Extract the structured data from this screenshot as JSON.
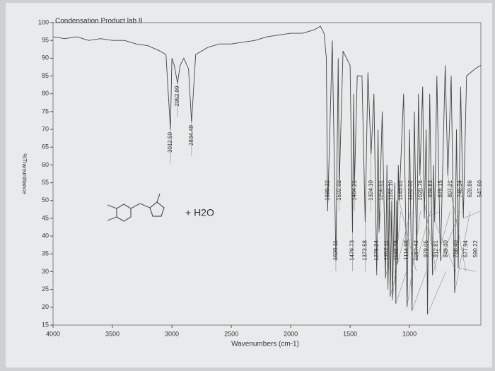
{
  "chart_data": {
    "type": "line",
    "title": "Condensation Product lab 8",
    "x_label": "Wavenumbers (cm-1)",
    "y_label": "%Transmittance",
    "annotation": "+ H2O",
    "xlim": [
      4000,
      400
    ],
    "xticks": [
      4000,
      3500,
      3000,
      2500,
      2000,
      1500,
      1000
    ],
    "ylim": [
      15,
      100
    ],
    "yticks": [
      15,
      20,
      25,
      30,
      35,
      40,
      45,
      50,
      55,
      60,
      65,
      70,
      75,
      80,
      85,
      90,
      95,
      100
    ],
    "series": [
      {
        "color": "#444444",
        "x": [
          4000,
          3900,
          3800,
          3700,
          3600,
          3500,
          3400,
          3300,
          3200,
          3100,
          3050,
          3012.5,
          3000,
          2980,
          2952.99,
          2930,
          2900,
          2860,
          2834.49,
          2800,
          2700,
          2600,
          2500,
          2400,
          2300,
          2200,
          2100,
          2000,
          1900,
          1800,
          1750,
          1720,
          1700,
          1689.32,
          1650,
          1620.11,
          1600,
          1592.02,
          1560,
          1500,
          1479.73,
          1470,
          1464.21,
          1440,
          1400,
          1373.58,
          1350,
          1324.1,
          1300,
          1276.24,
          1265,
          1256.61,
          1230,
          1202.11,
          1190,
          1182.1,
          1170,
          1162.78,
          1150,
          1143.61,
          1125,
          1114.98,
          1108,
          1102.02,
          1095,
          1087.43,
          1050,
          1020.76,
          1000,
          979.05,
          960,
          939.83,
          925,
          912.81,
          890,
          876.15,
          860,
          849.3,
          830,
          807.21,
          798,
          788.4,
          770,
          740.34,
          700,
          677.94,
          650,
          620.86,
          605,
          590.22,
          570,
          547.6,
          520,
          450,
          400
        ],
        "values": [
          96,
          95.5,
          96,
          95,
          95.5,
          95,
          95,
          94,
          93.5,
          92,
          91,
          70,
          90,
          88,
          83,
          88,
          90,
          87,
          72,
          91,
          93,
          94,
          94,
          94.5,
          95,
          96,
          96.5,
          97,
          97,
          98,
          99,
          97,
          90,
          47,
          95,
          33,
          90,
          54,
          92,
          88,
          41,
          80,
          54,
          85,
          85,
          44,
          86,
          63,
          80,
          29,
          70,
          41,
          75,
          28,
          60,
          25,
          55,
          23,
          50,
          22,
          55,
          21,
          50,
          32,
          60,
          50,
          80,
          20,
          70,
          19,
          75,
          33,
          80,
          57,
          82,
          45,
          70,
          18,
          80,
          29,
          60,
          44,
          85,
          33,
          88,
          57,
          85,
          24,
          70,
          31,
          82,
          45,
          85,
          87,
          88
        ]
      }
    ],
    "peaks": {
      "x": [
        3012.5,
        2952.99,
        2834.49,
        1689.32,
        1620.11,
        1592.02,
        1479.73,
        1464.21,
        1373.58,
        1324.1,
        1276.24,
        1256.61,
        1202.11,
        1182.1,
        1162.78,
        1143.61,
        1114.98,
        1102.02,
        1087.43,
        1020.76,
        979.05,
        939.83,
        912.81,
        876.15,
        849.3,
        807.21,
        788.4,
        740.34,
        677.94,
        620.86,
        590.22,
        547.6
      ],
      "x_labels": [
        "3012.50",
        "2952.99",
        "2834.49",
        "1689.32",
        "1620.11",
        "1592.02",
        "1479.73",
        "1464.21",
        "1373.58",
        "1324.10",
        "1276.24",
        "1256.61",
        "1202.11",
        "1182.10",
        "1162.78",
        "1143.61",
        "1114.98",
        "1102.02",
        "1087.43",
        "1020.76",
        "979.05",
        "939.83",
        "912.81",
        "876.15",
        "849.30",
        "807.21",
        "788.40",
        "740.34",
        "677.94",
        "620.86",
        "590.22",
        "547.60"
      ],
      "values": [
        70,
        83,
        72,
        47,
        33,
        54,
        41,
        54,
        44,
        63,
        29,
        41,
        28,
        25,
        23,
        22,
        21,
        32,
        50,
        20,
        19,
        33,
        57,
        45,
        18,
        29,
        44,
        33,
        57,
        24,
        31,
        45
      ]
    }
  }
}
